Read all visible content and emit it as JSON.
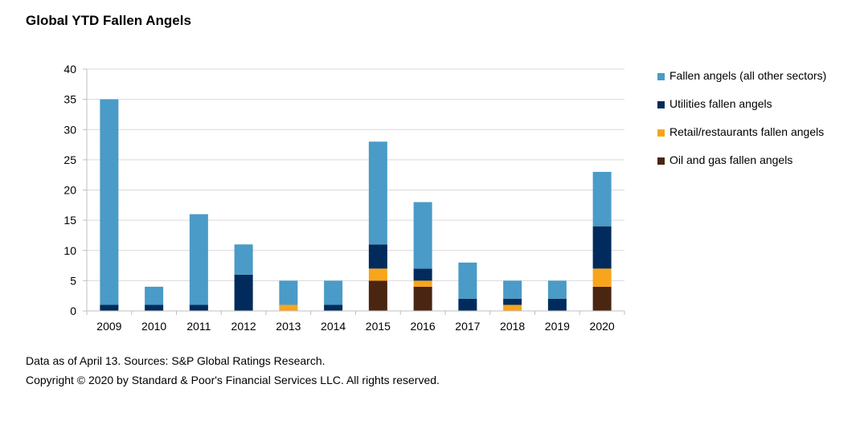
{
  "title": "Global YTD Fallen Angels",
  "footnote": "Data as of April 13. Sources: S&P Global Ratings Research.",
  "copyright": "Copyright © 2020 by Standard & Poor's Financial Services LLC. All rights reserved.",
  "chart_data": {
    "type": "bar",
    "stacked": true,
    "title": "Global YTD Fallen Angels",
    "xlabel": "",
    "ylabel": "",
    "ylim": [
      0,
      40
    ],
    "yticks": [
      0,
      5,
      10,
      15,
      20,
      25,
      30,
      35,
      40
    ],
    "grid": true,
    "legend_position": "right",
    "categories": [
      "2009",
      "2010",
      "2011",
      "2012",
      "2013",
      "2014",
      "2015",
      "2016",
      "2017",
      "2018",
      "2019",
      "2020"
    ],
    "series": [
      {
        "name": "Oil and gas fallen angels",
        "color": "#4a2511",
        "values": [
          0,
          0,
          0,
          0,
          0,
          0,
          5,
          4,
          0,
          0,
          0,
          4
        ]
      },
      {
        "name": "Retail/restaurants fallen angels",
        "color": "#f9a51b",
        "values": [
          0,
          0,
          0,
          0,
          1,
          0,
          2,
          1,
          0,
          1,
          0,
          3
        ]
      },
      {
        "name": "Utilities fallen angels",
        "color": "#002b5c",
        "values": [
          1,
          1,
          1,
          6,
          0,
          1,
          4,
          2,
          2,
          1,
          2,
          7
        ]
      },
      {
        "name": "Fallen angels (all other sectors)",
        "color": "#4a9bc7",
        "values": [
          34,
          3,
          15,
          5,
          4,
          4,
          17,
          11,
          6,
          3,
          3,
          9
        ]
      }
    ],
    "legend_order": [
      3,
      2,
      1,
      0
    ]
  }
}
